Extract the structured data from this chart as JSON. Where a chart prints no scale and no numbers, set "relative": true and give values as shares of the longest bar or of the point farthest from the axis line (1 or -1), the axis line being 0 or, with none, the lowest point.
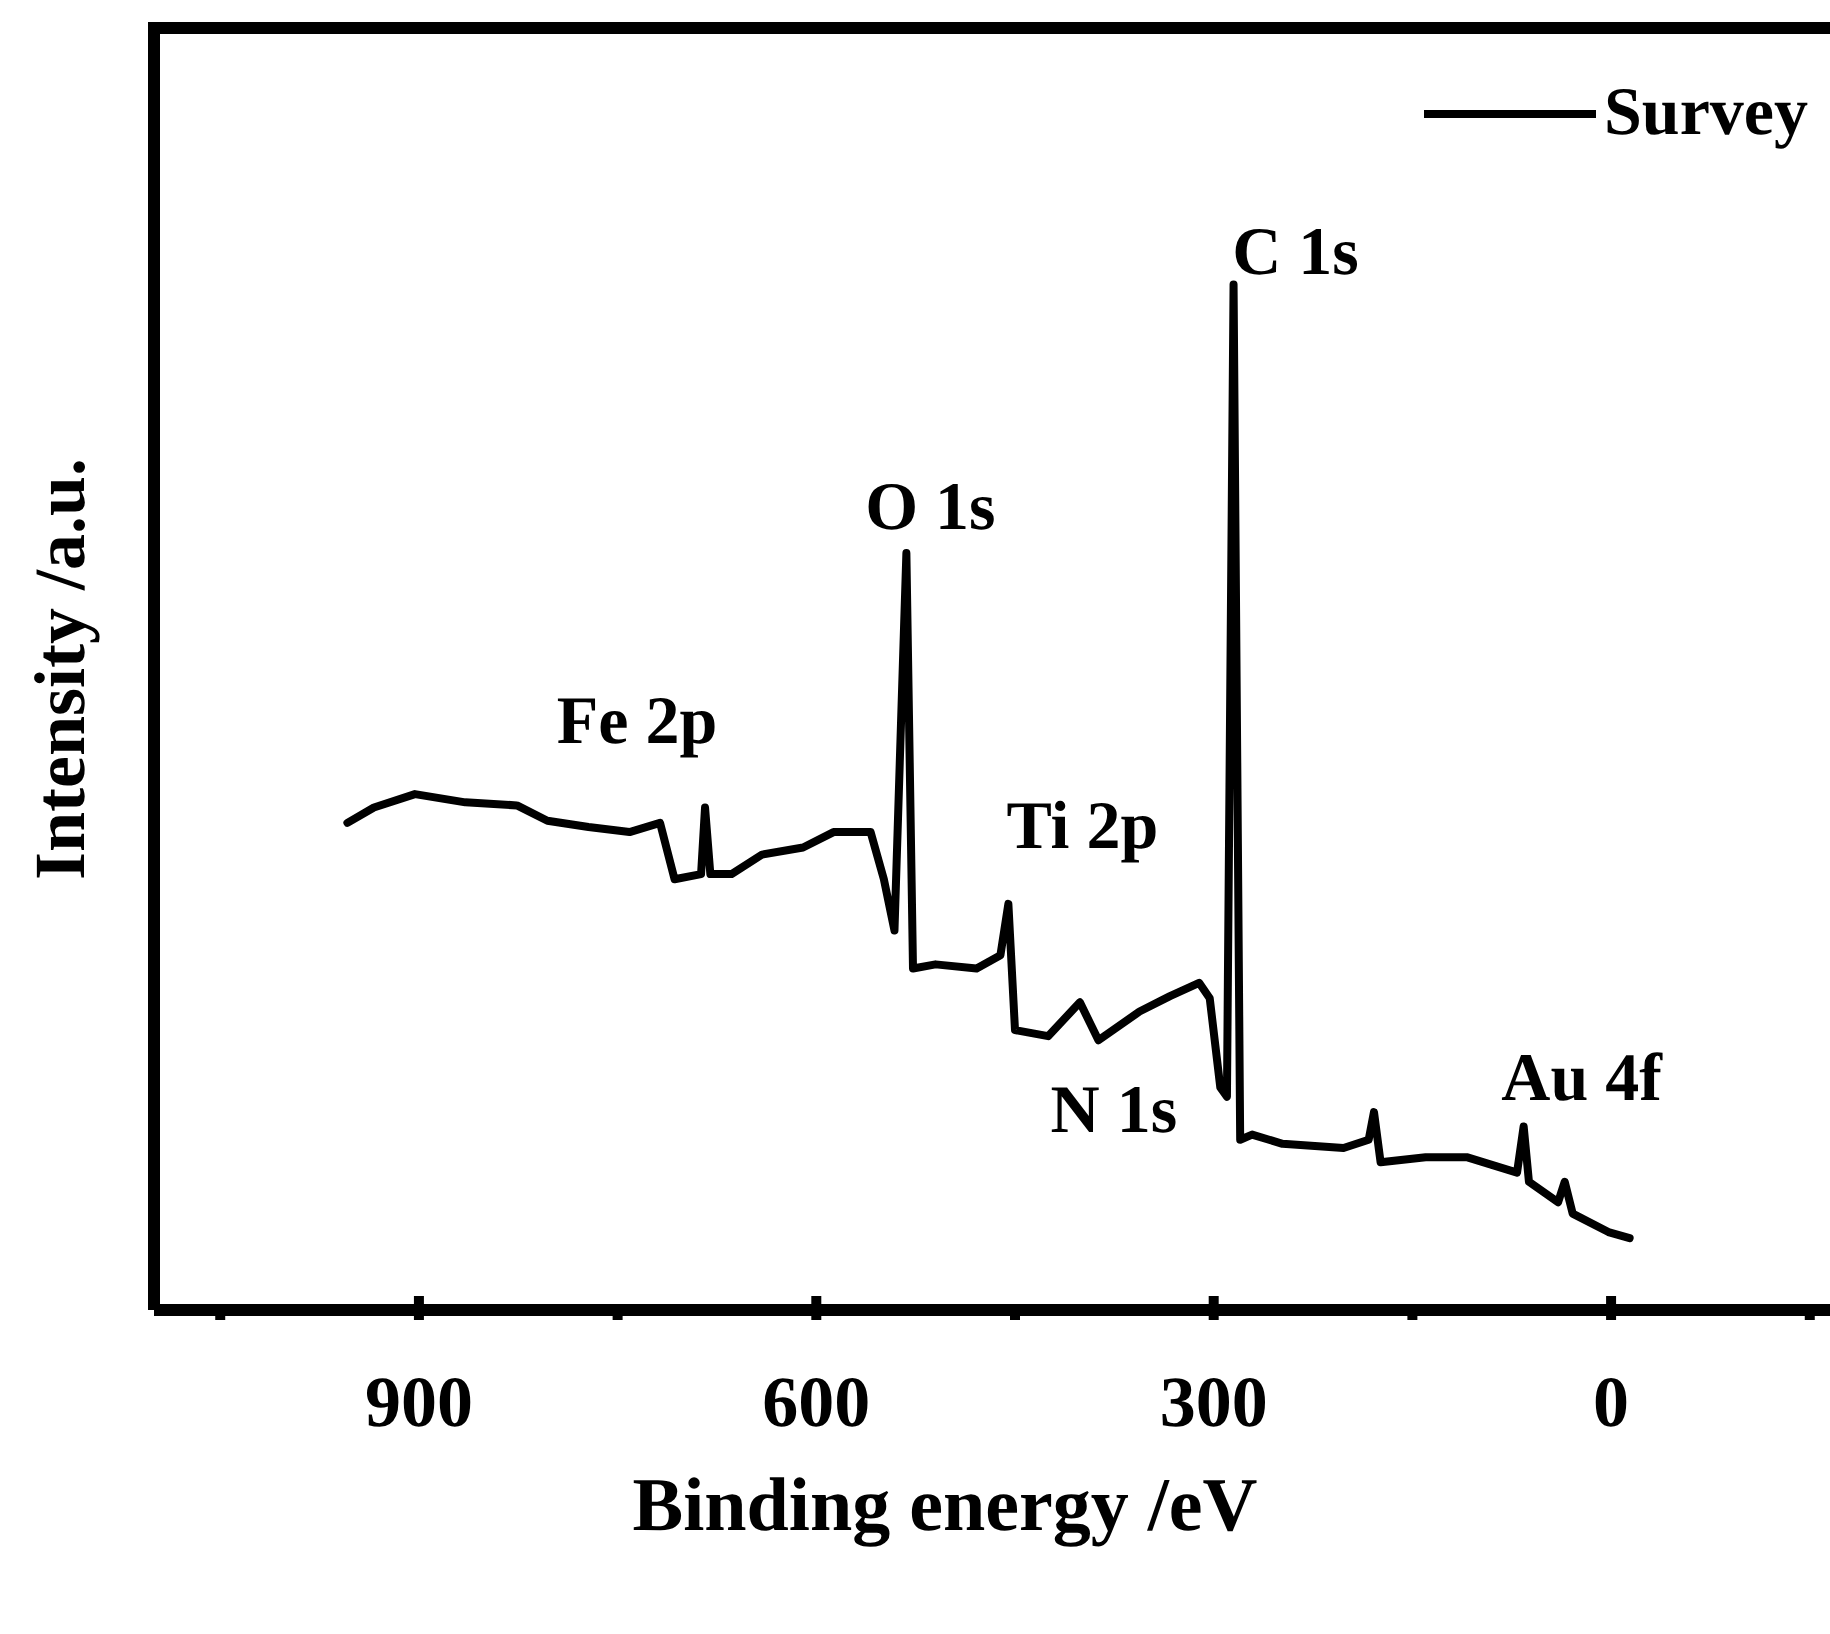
{
  "chart_data": {
    "type": "line",
    "relative": true,
    "xlabel": "Binding energy /eV",
    "ylabel": "Intensity /a.u.",
    "xlim": [
      1100,
      -200
    ],
    "xticks": [
      {
        "value": 1050,
        "label": null
      },
      900,
      {
        "value": 750,
        "label": null
      },
      600,
      {
        "value": 450,
        "label": null
      },
      300,
      {
        "value": 150,
        "label": null
      },
      0,
      {
        "value": -150,
        "label": null
      }
    ],
    "x": [
      954,
      934,
      903,
      865,
      826,
      803,
      772,
      741,
      718,
      707,
      687,
      684,
      680,
      664,
      641,
      610,
      587,
      559,
      549,
      541,
      532,
      527,
      510,
      479,
      461,
      455,
      450,
      425,
      401,
      387,
      356,
      333,
      311,
      303,
      295,
      290,
      285,
      280,
      271,
      248,
      202,
      183,
      179,
      174,
      140,
      109,
      71,
      66,
      62,
      40,
      35,
      29,
      2,
      -14
    ],
    "series": [
      {
        "name": "Survey",
        "color": "#000000",
        "values": [
          0.475,
          0.49,
          0.503,
          0.495,
          0.492,
          0.477,
          0.471,
          0.466,
          0.475,
          0.42,
          0.425,
          0.49,
          0.425,
          0.425,
          0.444,
          0.451,
          0.466,
          0.466,
          0.42,
          0.37,
          0.738,
          0.333,
          0.337,
          0.333,
          0.346,
          0.396,
          0.273,
          0.267,
          0.3,
          0.263,
          0.291,
          0.306,
          0.319,
          0.304,
          0.217,
          0.208,
          1.0,
          0.166,
          0.171,
          0.162,
          0.158,
          0.166,
          0.193,
          0.144,
          0.149,
          0.149,
          0.134,
          0.179,
          0.125,
          0.105,
          0.125,
          0.094,
          0.076,
          0.07
        ]
      }
    ],
    "legend": "top right",
    "annotations": [
      {
        "text": "Fe 2p",
        "x": 684,
        "y": 0.49
      },
      {
        "text": "O 1s",
        "x": 532,
        "y": 0.738
      },
      {
        "text": "Ti 2p",
        "x": 455,
        "y": 0.396
      },
      {
        "text": "N 1s",
        "x": 401,
        "y": 0.3
      },
      {
        "text": "C 1s",
        "x": 285,
        "y": 1.0
      },
      {
        "text": "Au 4f",
        "x": 66,
        "y": 0.179
      }
    ]
  }
}
